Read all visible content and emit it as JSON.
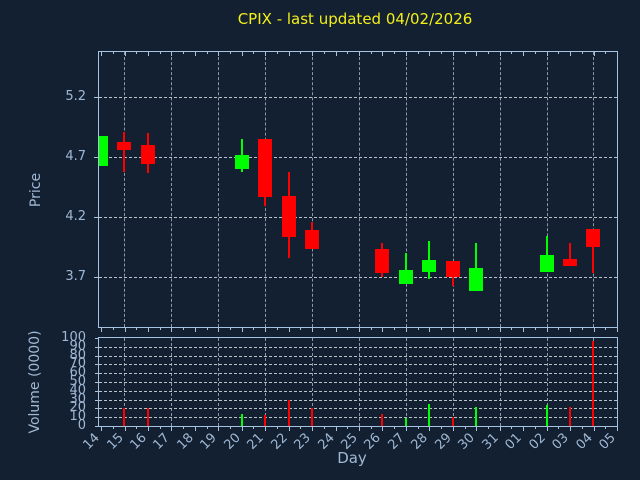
{
  "title": "CPIX - last updated 04/02/2026",
  "colors": {
    "background": "#132032",
    "frame": "#a5c3e1",
    "text": "#9fb8d4",
    "title_text": "#f2ef19",
    "up": "#00ff00",
    "down": "#ff0000",
    "grid_h": "#b9c2c9",
    "grid_v": "#8e99a6"
  },
  "chart_data": [
    {
      "type": "candlestick",
      "title": "CPIX - last updated 04/02/2026",
      "xlabel": "Day",
      "ylabel": "Price",
      "x_categories": [
        "14",
        "15",
        "16",
        "17",
        "18",
        "19",
        "20",
        "21",
        "22",
        "23",
        "24",
        "25",
        "26",
        "27",
        "28",
        "29",
        "30",
        "31",
        "01",
        "02",
        "03",
        "04",
        "05"
      ],
      "ylim": [
        3.28,
        5.58
      ],
      "ytick_labels": [
        "3.7",
        "4.2",
        "4.7",
        "5.2"
      ],
      "yticks": [
        3.7,
        4.2,
        4.7,
        5.2
      ],
      "grid": true,
      "gridline_days": [
        "15",
        "17",
        "19",
        "21",
        "23",
        "25",
        "27",
        "29",
        "31",
        "02",
        "04"
      ],
      "legend": "none",
      "candles": [
        {
          "day": "14",
          "open": 4.63,
          "high": 4.88,
          "low": 4.63,
          "close": 4.88,
          "direction": "up"
        },
        {
          "day": "15",
          "open": 4.83,
          "high": 4.91,
          "low": 4.58,
          "close": 4.76,
          "direction": "down"
        },
        {
          "day": "16",
          "open": 4.8,
          "high": 4.9,
          "low": 4.57,
          "close": 4.64,
          "direction": "down"
        },
        {
          "day": "20",
          "open": 4.6,
          "high": 4.85,
          "low": 4.58,
          "close": 4.72,
          "direction": "up"
        },
        {
          "day": "21",
          "open": 4.85,
          "high": 4.85,
          "low": 4.29,
          "close": 4.37,
          "direction": "down"
        },
        {
          "day": "22",
          "open": 4.38,
          "high": 4.58,
          "low": 3.86,
          "close": 4.03,
          "direction": "down"
        },
        {
          "day": "23",
          "open": 4.09,
          "high": 4.16,
          "low": 3.93,
          "close": 3.93,
          "direction": "down"
        },
        {
          "day": "26",
          "open": 3.93,
          "high": 3.98,
          "low": 3.7,
          "close": 3.73,
          "direction": "down"
        },
        {
          "day": "27",
          "open": 3.64,
          "high": 3.9,
          "low": 3.64,
          "close": 3.76,
          "direction": "up"
        },
        {
          "day": "28",
          "open": 3.74,
          "high": 4.0,
          "low": 3.68,
          "close": 3.84,
          "direction": "up"
        },
        {
          "day": "29",
          "open": 3.83,
          "high": 3.83,
          "low": 3.62,
          "close": 3.7,
          "direction": "down"
        },
        {
          "day": "30",
          "open": 3.58,
          "high": 3.98,
          "low": 3.58,
          "close": 3.77,
          "direction": "up"
        },
        {
          "day": "02",
          "open": 3.74,
          "high": 4.04,
          "low": 3.74,
          "close": 3.88,
          "direction": "up"
        },
        {
          "day": "03",
          "open": 3.85,
          "high": 3.98,
          "low": 3.79,
          "close": 3.79,
          "direction": "down"
        },
        {
          "day": "04",
          "open": 4.1,
          "high": 4.1,
          "low": 3.73,
          "close": 3.95,
          "direction": "down"
        }
      ]
    },
    {
      "type": "bar",
      "ylabel": "Volume (0000)",
      "xlabel": "Day",
      "ylim": [
        0,
        100
      ],
      "yticks": [
        0,
        10,
        20,
        30,
        40,
        50,
        60,
        70,
        80,
        90,
        100
      ],
      "grid": true,
      "bars": [
        {
          "day": "15",
          "value": 20,
          "direction": "down"
        },
        {
          "day": "16",
          "value": 20,
          "direction": "down"
        },
        {
          "day": "20",
          "value": 14,
          "direction": "up"
        },
        {
          "day": "21",
          "value": 13,
          "direction": "down"
        },
        {
          "day": "22",
          "value": 30,
          "direction": "down"
        },
        {
          "day": "23",
          "value": 20,
          "direction": "down"
        },
        {
          "day": "26",
          "value": 14,
          "direction": "down"
        },
        {
          "day": "27",
          "value": 9,
          "direction": "up"
        },
        {
          "day": "28",
          "value": 25,
          "direction": "up"
        },
        {
          "day": "29",
          "value": 10,
          "direction": "down"
        },
        {
          "day": "30",
          "value": 22,
          "direction": "up"
        },
        {
          "day": "02",
          "value": 24,
          "direction": "up"
        },
        {
          "day": "03",
          "value": 22,
          "direction": "down"
        },
        {
          "day": "04",
          "value": 97,
          "direction": "down"
        }
      ]
    }
  ],
  "axis_labels": {
    "price": "Price",
    "volume": "Volume (0000)",
    "day": "Day"
  }
}
